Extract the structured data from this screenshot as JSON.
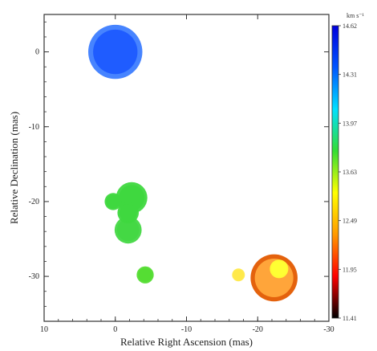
{
  "chart_data": {
    "type": "scatter",
    "xlabel": "Relative Right Ascension (mas)",
    "ylabel": "Relative Declination (mas)",
    "xlim": [
      10,
      -30
    ],
    "ylim": [
      -36,
      5
    ],
    "xticks": [
      10,
      0,
      -10,
      -20,
      -30
    ],
    "yticks": [
      0,
      -10,
      -20,
      -30
    ],
    "xtick_labels": [
      "10",
      "0",
      "-10",
      "-20",
      "-30"
    ],
    "ytick_labels": [
      "0",
      "-10",
      "-20",
      "-30"
    ],
    "colorbar": {
      "unit": "km s⁻¹",
      "ticks": [
        {
          "value": 14.62,
          "label": "14.62"
        },
        {
          "value": 14.31,
          "label": "14.31"
        },
        {
          "value": 13.97,
          "label": "13.97"
        },
        {
          "value": 13.63,
          "label": "13.63"
        },
        {
          "value": 12.49,
          "label": "12.49"
        },
        {
          "value": 11.95,
          "label": "11.95"
        },
        {
          "value": 11.41,
          "label": "11.41"
        }
      ],
      "colors": [
        "#000000",
        "#ff0000",
        "#ff9900",
        "#ffff00",
        "#33dd33",
        "#00e0ff",
        "#0055ff",
        "#0000dd"
      ]
    },
    "points": [
      {
        "x": 0.0,
        "y": 0.0,
        "velocity": 14.55,
        "size": 3.8,
        "color": "#1f5cff",
        "halo": "#3d7dff"
      },
      {
        "x": -2.3,
        "y": -19.5,
        "velocity": 13.4,
        "size": 2.2,
        "color": "#3fd83f",
        "halo": "#3fd83f"
      },
      {
        "x": 0.3,
        "y": -20.0,
        "velocity": 13.3,
        "size": 1.2,
        "color": "#3fd83f",
        "halo": "#3fd83f"
      },
      {
        "x": -1.8,
        "y": -21.5,
        "velocity": 13.3,
        "size": 1.5,
        "color": "#3fd83f",
        "halo": "#3fd83f"
      },
      {
        "x": -1.8,
        "y": -23.8,
        "velocity": 13.2,
        "size": 1.9,
        "color": "#44d844",
        "halo": "#44d844"
      },
      {
        "x": -4.2,
        "y": -29.8,
        "velocity": 13.0,
        "size": 1.2,
        "color": "#55dd33",
        "halo": "#55dd33"
      },
      {
        "x": -17.3,
        "y": -29.8,
        "velocity": 12.3,
        "size": 0.9,
        "color": "#ffe94a",
        "halo": "#ffe94a"
      },
      {
        "x": -22.3,
        "y": -30.2,
        "velocity": 11.9,
        "size": 3.3,
        "color": "#ffa53a",
        "halo": "#e35a00"
      },
      {
        "x": -23.0,
        "y": -29.0,
        "velocity": 12.3,
        "size": 1.3,
        "color": "#ffff33",
        "halo": "#ffff33"
      }
    ]
  }
}
